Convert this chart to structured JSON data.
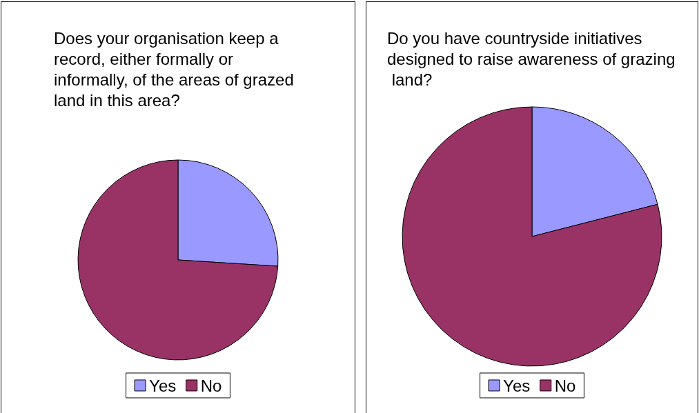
{
  "chart_data": [
    {
      "type": "pie",
      "title": "Does your organisation keep a record, either formally or informally, of the areas of grazed land in this area?",
      "categories": [
        "Yes",
        "No"
      ],
      "values": [
        26,
        74
      ],
      "colors": [
        "#9999ff",
        "#993366"
      ],
      "legend": "bottom"
    },
    {
      "type": "pie",
      "title": "Do you have countryside initiatives designed to raise awareness of grazing land?",
      "categories": [
        "Yes",
        "No"
      ],
      "values": [
        21,
        79
      ],
      "colors": [
        "#9999ff",
        "#993366"
      ],
      "legend": "bottom"
    }
  ]
}
